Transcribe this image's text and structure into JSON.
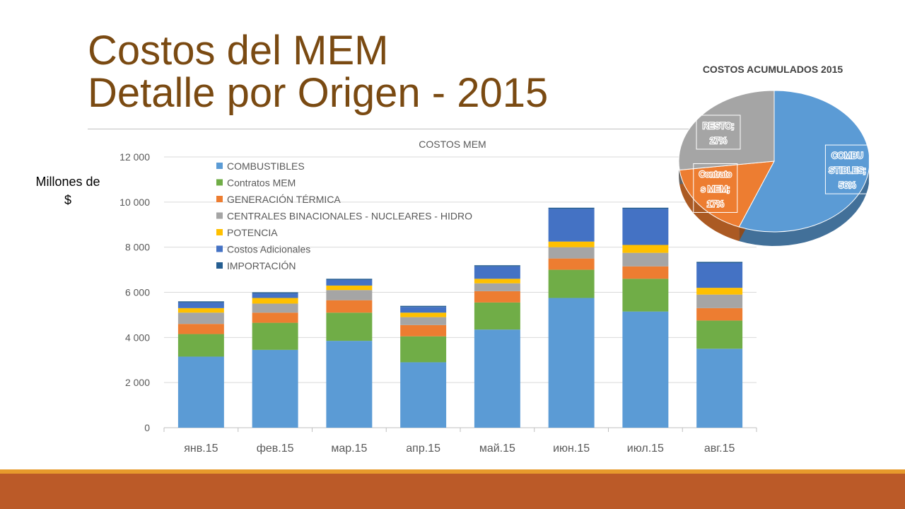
{
  "slide": {
    "title_line1": "Costos del MEM",
    "title_line2": "Detalle por Origen - 2015",
    "ylabel_line1": "Millones de",
    "ylabel_line2": "$"
  },
  "colors": {
    "title": "#7a4a12",
    "footer_band": "#bb5a28",
    "footer_thin": "#e79a2c"
  },
  "chart_data": [
    {
      "type": "bar",
      "stacked": true,
      "title": "COSTOS MEM",
      "xlabel": "",
      "ylabel": "Millones de $",
      "ylim": [
        0,
        12000
      ],
      "yticks": [
        0,
        2000,
        4000,
        6000,
        8000,
        10000,
        12000
      ],
      "ytick_labels": [
        "0",
        "2 000",
        "4 000",
        "6 000",
        "8 000",
        "10 000",
        "12 000"
      ],
      "grid": true,
      "legend_position": "top-left",
      "categories": [
        "янв.15",
        "фев.15",
        "мар.15",
        "апр.15",
        "май.15",
        "июн.15",
        "июл.15",
        "авг.15"
      ],
      "series": [
        {
          "name": "COMBUSTIBLES",
          "color": "#5b9bd5",
          "values": [
            3150,
            3450,
            3850,
            2900,
            4350,
            5750,
            5150,
            3500
          ]
        },
        {
          "name": "Contratos MEM",
          "color": "#70ad47",
          "values": [
            1000,
            1200,
            1250,
            1150,
            1200,
            1250,
            1450,
            1250
          ]
        },
        {
          "name": "GENERACIÓN TÉRMICA",
          "color": "#ed7d31",
          "values": [
            450,
            450,
            550,
            500,
            500,
            500,
            550,
            550
          ]
        },
        {
          "name": "CENTRALES BINACIONALES - NUCLEARES - HIDRO",
          "color": "#a5a5a5",
          "values": [
            500,
            400,
            450,
            350,
            350,
            500,
            600,
            600
          ]
        },
        {
          "name": "POTENCIA",
          "color": "#ffc000",
          "values": [
            200,
            250,
            200,
            200,
            200,
            250,
            350,
            300
          ]
        },
        {
          "name": "Costos Adicionales",
          "color": "#4472c4",
          "values": [
            250,
            200,
            250,
            250,
            550,
            1450,
            1600,
            1100
          ]
        },
        {
          "name": "IMPORTACIÓN",
          "color": "#255e91",
          "values": [
            50,
            50,
            50,
            50,
            50,
            50,
            50,
            50
          ]
        }
      ]
    },
    {
      "type": "pie",
      "style": "3d",
      "title": "COSTOS ACUMULADOS 2015",
      "slices": [
        {
          "label": "COMBUSTIBLES",
          "value": 56,
          "data_label": [
            "COMBU",
            "STIBLES;",
            "56%"
          ],
          "color": "#5b9bd5",
          "label_color": "#5b9bd5"
        },
        {
          "label": "Contratos MEM",
          "value": 17,
          "data_label": [
            "Contrato",
            "s MEM;",
            "17%"
          ],
          "color": "#ed7d31",
          "label_color": "#ed7d31"
        },
        {
          "label": "RESTO",
          "value": 27,
          "data_label": [
            "RESTO;",
            "27%"
          ],
          "color": "#a5a5a5",
          "label_color": "#a5a5a5"
        }
      ]
    }
  ]
}
